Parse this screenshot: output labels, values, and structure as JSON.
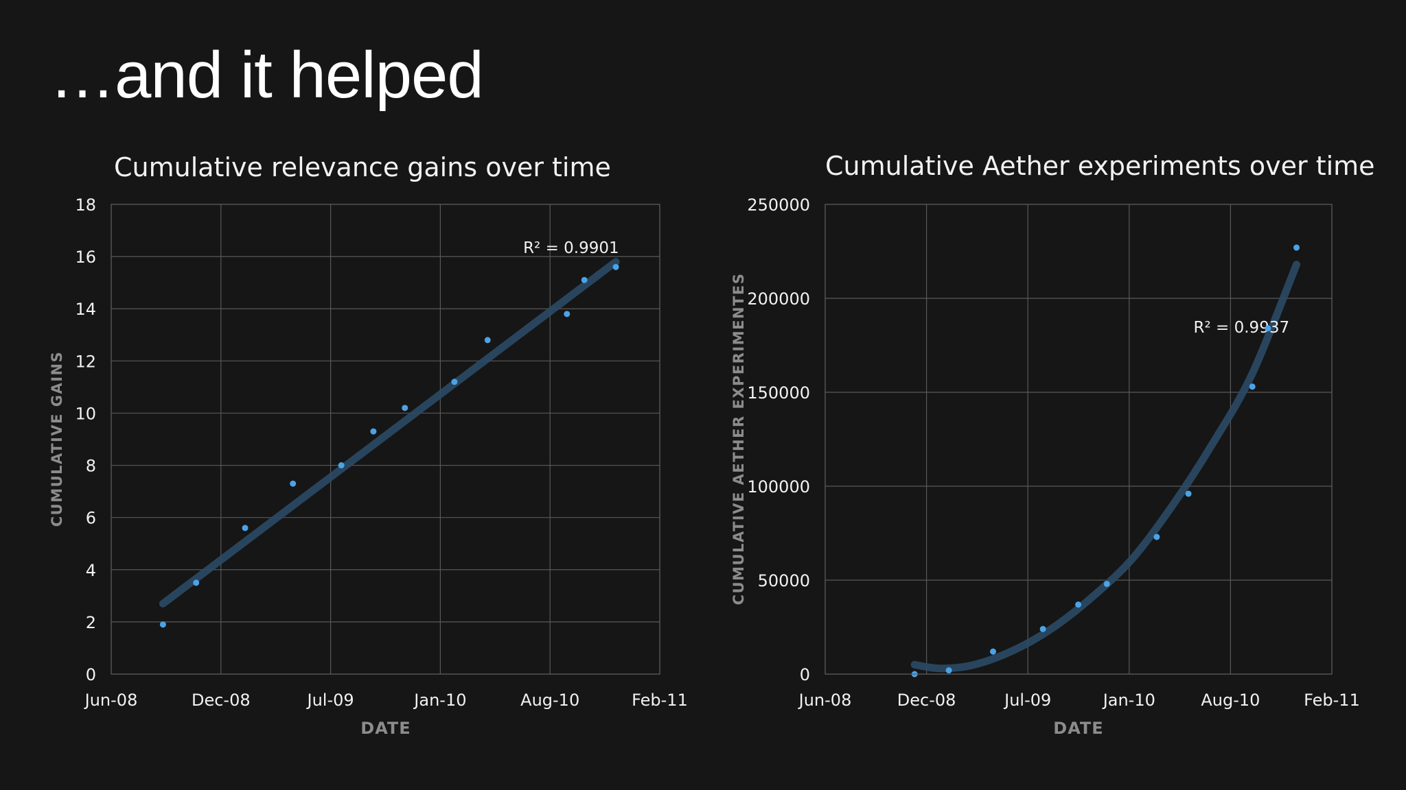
{
  "slide": {
    "title": "…and it helped"
  },
  "colors": {
    "background": "#161616",
    "grid": "#595959",
    "point": "#4aa3e8",
    "trendline": "#2b4a66",
    "text": "#f2f2f2",
    "axis_title": "#8c8c8c"
  },
  "chart_data": [
    {
      "type": "scatter",
      "title": "Cumulative relevance gains over time",
      "xlabel": "DATE",
      "ylabel": "CUMULATIVE GAINS",
      "x_ticks": [
        "Jun-08",
        "Dec-08",
        "Jul-09",
        "Jan-10",
        "Aug-10",
        "Feb-11"
      ],
      "xlim": [
        "2008-06-01",
        "2011-02-01"
      ],
      "ylim": [
        0,
        18
      ],
      "y_ticks": [
        0,
        2,
        4,
        6,
        8,
        10,
        12,
        14,
        16,
        18
      ],
      "grid": true,
      "points": [
        {
          "x": "2008-09-01",
          "y": 1.9
        },
        {
          "x": "2008-10-30",
          "y": 3.5
        },
        {
          "x": "2009-01-25",
          "y": 5.6
        },
        {
          "x": "2009-04-20",
          "y": 7.3
        },
        {
          "x": "2009-07-15",
          "y": 8.0
        },
        {
          "x": "2009-09-10",
          "y": 9.3
        },
        {
          "x": "2009-11-05",
          "y": 10.2
        },
        {
          "x": "2010-02-01",
          "y": 11.2
        },
        {
          "x": "2010-04-01",
          "y": 12.8
        },
        {
          "x": "2010-08-20",
          "y": 13.8
        },
        {
          "x": "2010-09-20",
          "y": 15.1
        },
        {
          "x": "2010-11-15",
          "y": 15.6
        }
      ],
      "trendline": {
        "type": "linear",
        "annotation": "R² = 0.9901",
        "points": [
          {
            "x": "2008-09-01",
            "y": 2.7
          },
          {
            "x": "2010-11-15",
            "y": 15.8
          }
        ]
      }
    },
    {
      "type": "scatter",
      "title": "Cumulative Aether experiments over time",
      "xlabel": "DATE",
      "ylabel": "CUMULATIVE AETHER EXPERIMENTES",
      "x_ticks": [
        "Jun-08",
        "Dec-08",
        "Jul-09",
        "Jan-10",
        "Aug-10",
        "Feb-11"
      ],
      "xlim": [
        "2008-06-01",
        "2011-02-01"
      ],
      "ylim": [
        0,
        250000
      ],
      "y_ticks": [
        0,
        50000,
        100000,
        150000,
        200000,
        250000
      ],
      "grid": true,
      "points": [
        {
          "x": "2008-11-20",
          "y": 0
        },
        {
          "x": "2009-01-25",
          "y": 2000
        },
        {
          "x": "2009-04-20",
          "y": 12000
        },
        {
          "x": "2009-07-25",
          "y": 24000
        },
        {
          "x": "2009-10-01",
          "y": 37000
        },
        {
          "x": "2009-11-25",
          "y": 48000
        },
        {
          "x": "2010-03-01",
          "y": 73000
        },
        {
          "x": "2010-05-01",
          "y": 96000
        },
        {
          "x": "2010-09-01",
          "y": 153000
        },
        {
          "x": "2010-10-01",
          "y": 184000
        },
        {
          "x": "2010-11-25",
          "y": 227000
        }
      ],
      "trendline": {
        "type": "polynomial",
        "annotation": "R² = 0.9937",
        "points": [
          {
            "x": "2008-11-20",
            "y": 5000
          },
          {
            "x": "2009-01-10",
            "y": 3000
          },
          {
            "x": "2009-03-15",
            "y": 5000
          },
          {
            "x": "2009-06-01",
            "y": 13000
          },
          {
            "x": "2009-08-15",
            "y": 25000
          },
          {
            "x": "2009-11-01",
            "y": 42000
          },
          {
            "x": "2010-01-15",
            "y": 62000
          },
          {
            "x": "2010-04-01",
            "y": 90000
          },
          {
            "x": "2010-06-15",
            "y": 122000
          },
          {
            "x": "2010-09-01",
            "y": 160000
          },
          {
            "x": "2010-11-25",
            "y": 218000
          }
        ]
      }
    }
  ]
}
